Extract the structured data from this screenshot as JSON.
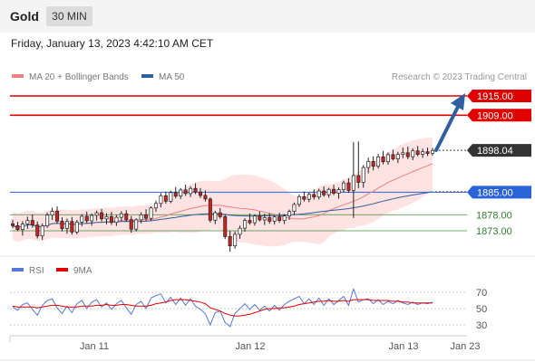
{
  "header": {
    "symbol": "Gold",
    "timeframe": "30 MIN",
    "datetime": "Friday, January 13, 2023 4:42:10 AM CET"
  },
  "legend": {
    "ma20": {
      "label": "MA 20 + Bollinger Bands",
      "color": "#f08080"
    },
    "ma50": {
      "label": "MA 50",
      "color": "#2e5f9e"
    },
    "credit": "Research © 2023 Trading Central"
  },
  "rsi_legend": {
    "rsi": {
      "label": "RSI",
      "color": "#5577dd"
    },
    "ma9": {
      "label": "9MA",
      "color": "#e00000"
    }
  },
  "colors": {
    "up": "#ffffff",
    "down": "#cc2222",
    "resistance": "#e00000",
    "pivot": "#2a62d8",
    "support": "#3c8c3c",
    "arrow": "#2e5f9e",
    "band": "#ffd6d6"
  },
  "chart_data": [
    {
      "type": "candlestick",
      "instrument": "Gold",
      "interval": "30 MIN",
      "x_ticks": [
        "Jan 11",
        "Jan 12",
        "Jan 13",
        "Jan 23"
      ],
      "price_levels": [
        {
          "value": 1915.0,
          "label": "1915.00",
          "kind": "resistance"
        },
        {
          "value": 1909.0,
          "label": "1909.00",
          "kind": "resistance"
        },
        {
          "value": 1898.04,
          "label": "1898.04",
          "kind": "last"
        },
        {
          "value": 1885.0,
          "label": "1885.00",
          "kind": "pivot"
        },
        {
          "value": 1878.0,
          "label": "1878.00",
          "kind": "support"
        },
        {
          "value": 1873.0,
          "label": "1873.00",
          "kind": "support"
        }
      ],
      "candles": [
        [
          1875.2,
          1876.5,
          1873.8,
          1874.6
        ],
        [
          1874.6,
          1875.8,
          1872.9,
          1873.4
        ],
        [
          1873.4,
          1876.0,
          1871.5,
          1875.1
        ],
        [
          1875.1,
          1877.4,
          1873.6,
          1876.2
        ],
        [
          1876.2,
          1878.1,
          1874.0,
          1874.8
        ],
        [
          1874.8,
          1875.9,
          1870.6,
          1871.4
        ],
        [
          1871.4,
          1875.3,
          1870.2,
          1874.5
        ],
        [
          1874.5,
          1878.7,
          1873.9,
          1877.9
        ],
        [
          1877.9,
          1880.2,
          1876.4,
          1879.1
        ],
        [
          1879.1,
          1880.6,
          1875.2,
          1876.0
        ],
        [
          1876.0,
          1877.2,
          1872.8,
          1873.7
        ],
        [
          1873.7,
          1876.8,
          1872.1,
          1875.9
        ],
        [
          1875.9,
          1877.3,
          1871.8,
          1872.6
        ],
        [
          1872.6,
          1876.4,
          1871.9,
          1875.7
        ],
        [
          1875.7,
          1878.2,
          1874.4,
          1877.5
        ],
        [
          1877.5,
          1879.0,
          1875.3,
          1876.1
        ],
        [
          1876.1,
          1878.4,
          1874.6,
          1877.8
        ],
        [
          1877.8,
          1879.3,
          1876.2,
          1878.6
        ],
        [
          1878.6,
          1879.8,
          1875.9,
          1876.7
        ],
        [
          1876.7,
          1878.5,
          1875.0,
          1877.4
        ],
        [
          1877.4,
          1878.9,
          1874.8,
          1875.6
        ],
        [
          1875.6,
          1877.9,
          1874.5,
          1877.2
        ],
        [
          1877.2,
          1879.1,
          1876.0,
          1878.3
        ],
        [
          1878.3,
          1879.4,
          1875.8,
          1876.5
        ],
        [
          1876.5,
          1877.6,
          1872.4,
          1873.5
        ],
        [
          1873.5,
          1876.9,
          1872.8,
          1876.4
        ],
        [
          1876.4,
          1878.8,
          1875.3,
          1878.0
        ],
        [
          1878.0,
          1879.7,
          1876.1,
          1876.9
        ],
        [
          1876.9,
          1880.6,
          1876.2,
          1880.1
        ],
        [
          1880.1,
          1882.4,
          1878.9,
          1881.5
        ],
        [
          1881.5,
          1884.8,
          1880.3,
          1883.9
        ],
        [
          1883.9,
          1885.2,
          1881.4,
          1882.2
        ],
        [
          1882.2,
          1885.5,
          1881.6,
          1884.9
        ],
        [
          1884.9,
          1886.6,
          1883.1,
          1883.8
        ],
        [
          1883.8,
          1886.3,
          1882.9,
          1885.7
        ],
        [
          1885.7,
          1887.4,
          1883.9,
          1884.6
        ],
        [
          1884.6,
          1886.9,
          1883.5,
          1886.2
        ],
        [
          1886.2,
          1887.8,
          1884.4,
          1885.1
        ],
        [
          1885.1,
          1886.3,
          1883.2,
          1884.0
        ],
        [
          1884.0,
          1885.6,
          1882.1,
          1882.9
        ],
        [
          1882.9,
          1883.4,
          1875.6,
          1876.3
        ],
        [
          1876.3,
          1879.2,
          1875.1,
          1878.6
        ],
        [
          1878.6,
          1880.1,
          1876.8,
          1877.4
        ],
        [
          1877.4,
          1878.2,
          1870.4,
          1871.2
        ],
        [
          1871.2,
          1873.0,
          1866.5,
          1868.3
        ],
        [
          1868.3,
          1872.8,
          1867.4,
          1871.9
        ],
        [
          1871.9,
          1874.6,
          1870.5,
          1873.8
        ],
        [
          1873.8,
          1876.9,
          1872.7,
          1876.2
        ],
        [
          1876.2,
          1878.4,
          1874.9,
          1875.5
        ],
        [
          1875.5,
          1878.1,
          1874.6,
          1877.6
        ],
        [
          1877.6,
          1879.0,
          1875.9,
          1876.4
        ],
        [
          1876.4,
          1878.3,
          1874.8,
          1877.1
        ],
        [
          1877.1,
          1878.5,
          1875.2,
          1876.0
        ],
        [
          1876.0,
          1877.9,
          1874.9,
          1877.3
        ],
        [
          1877.3,
          1878.6,
          1875.5,
          1876.2
        ],
        [
          1876.2,
          1878.2,
          1875.1,
          1877.6
        ],
        [
          1877.6,
          1879.6,
          1876.4,
          1879.0
        ],
        [
          1879.0,
          1881.8,
          1877.9,
          1881.2
        ],
        [
          1881.2,
          1884.3,
          1880.4,
          1883.6
        ],
        [
          1883.6,
          1885.2,
          1882.1,
          1882.8
        ],
        [
          1882.8,
          1885.0,
          1881.9,
          1884.3
        ],
        [
          1884.3,
          1885.9,
          1882.7,
          1883.5
        ],
        [
          1883.5,
          1886.1,
          1882.8,
          1885.4
        ],
        [
          1885.4,
          1886.8,
          1883.6,
          1884.2
        ],
        [
          1884.2,
          1886.4,
          1883.3,
          1885.9
        ],
        [
          1885.9,
          1887.3,
          1884.1,
          1884.7
        ],
        [
          1884.7,
          1886.5,
          1883.0,
          1885.8
        ],
        [
          1885.8,
          1888.6,
          1885.0,
          1887.9
        ],
        [
          1887.9,
          1889.4,
          1884.8,
          1885.6
        ],
        [
          1885.6,
          1900.6,
          1877.0,
          1890.2
        ],
        [
          1890.2,
          1900.8,
          1886.2,
          1888.1
        ],
        [
          1888.1,
          1893.5,
          1886.4,
          1892.7
        ],
        [
          1892.7,
          1895.8,
          1890.9,
          1894.6
        ],
        [
          1894.6,
          1896.2,
          1891.8,
          1893.1
        ],
        [
          1893.1,
          1896.9,
          1892.4,
          1896.0
        ],
        [
          1896.0,
          1897.8,
          1893.7,
          1894.5
        ],
        [
          1894.5,
          1897.4,
          1893.6,
          1896.7
        ],
        [
          1896.7,
          1898.3,
          1894.9,
          1895.4
        ],
        [
          1895.4,
          1897.6,
          1894.1,
          1896.8
        ],
        [
          1896.8,
          1898.9,
          1895.6,
          1897.3
        ],
        [
          1897.3,
          1899.2,
          1895.3,
          1896.1
        ],
        [
          1896.1,
          1898.7,
          1895.0,
          1897.9
        ],
        [
          1897.9,
          1899.4,
          1896.2,
          1896.8
        ],
        [
          1896.8,
          1898.6,
          1895.7,
          1897.6
        ],
        [
          1897.6,
          1898.9,
          1896.3,
          1897.1
        ],
        [
          1897.1,
          1898.8,
          1896.4,
          1898.04
        ]
      ]
    },
    {
      "type": "line",
      "name": "RSI panel",
      "y_ticks": [
        70,
        50,
        30
      ],
      "ylim": [
        20,
        80
      ],
      "series": [
        {
          "name": "RSI",
          "values": [
            52,
            48,
            55,
            57,
            49,
            42,
            54,
            60,
            62,
            51,
            44,
            53,
            45,
            56,
            60,
            50,
            58,
            61,
            52,
            57,
            49,
            56,
            60,
            51,
            43,
            55,
            59,
            50,
            63,
            66,
            68,
            57,
            64,
            55,
            63,
            54,
            62,
            53,
            49,
            44,
            30,
            45,
            47,
            33,
            28,
            44,
            50,
            56,
            49,
            55,
            48,
            53,
            47,
            54,
            48,
            55,
            59,
            62,
            65,
            56,
            62,
            55,
            63,
            54,
            62,
            55,
            60,
            65,
            54,
            74,
            58,
            61,
            62,
            56,
            61,
            55,
            59,
            56,
            60,
            57,
            55,
            58,
            55,
            57,
            56,
            58
          ]
        },
        {
          "name": "9MA",
          "values": [
            53,
            52,
            52,
            52,
            52,
            51,
            52,
            53,
            54,
            54,
            53,
            52,
            52,
            52,
            53,
            53,
            53,
            54,
            54,
            55,
            54,
            54,
            55,
            55,
            54,
            53,
            53,
            53,
            54,
            56,
            57,
            58,
            60,
            61,
            61,
            61,
            60,
            59,
            58,
            56,
            51,
            49,
            47,
            44,
            42,
            41,
            41,
            42,
            43,
            45,
            47,
            49,
            50,
            50,
            51,
            51,
            52,
            53,
            55,
            56,
            57,
            58,
            59,
            59,
            60,
            59,
            59,
            60,
            59,
            61,
            61,
            61,
            61,
            60,
            60,
            60,
            60,
            59,
            59,
            58,
            58,
            57,
            57,
            57,
            57,
            57
          ]
        }
      ]
    }
  ]
}
